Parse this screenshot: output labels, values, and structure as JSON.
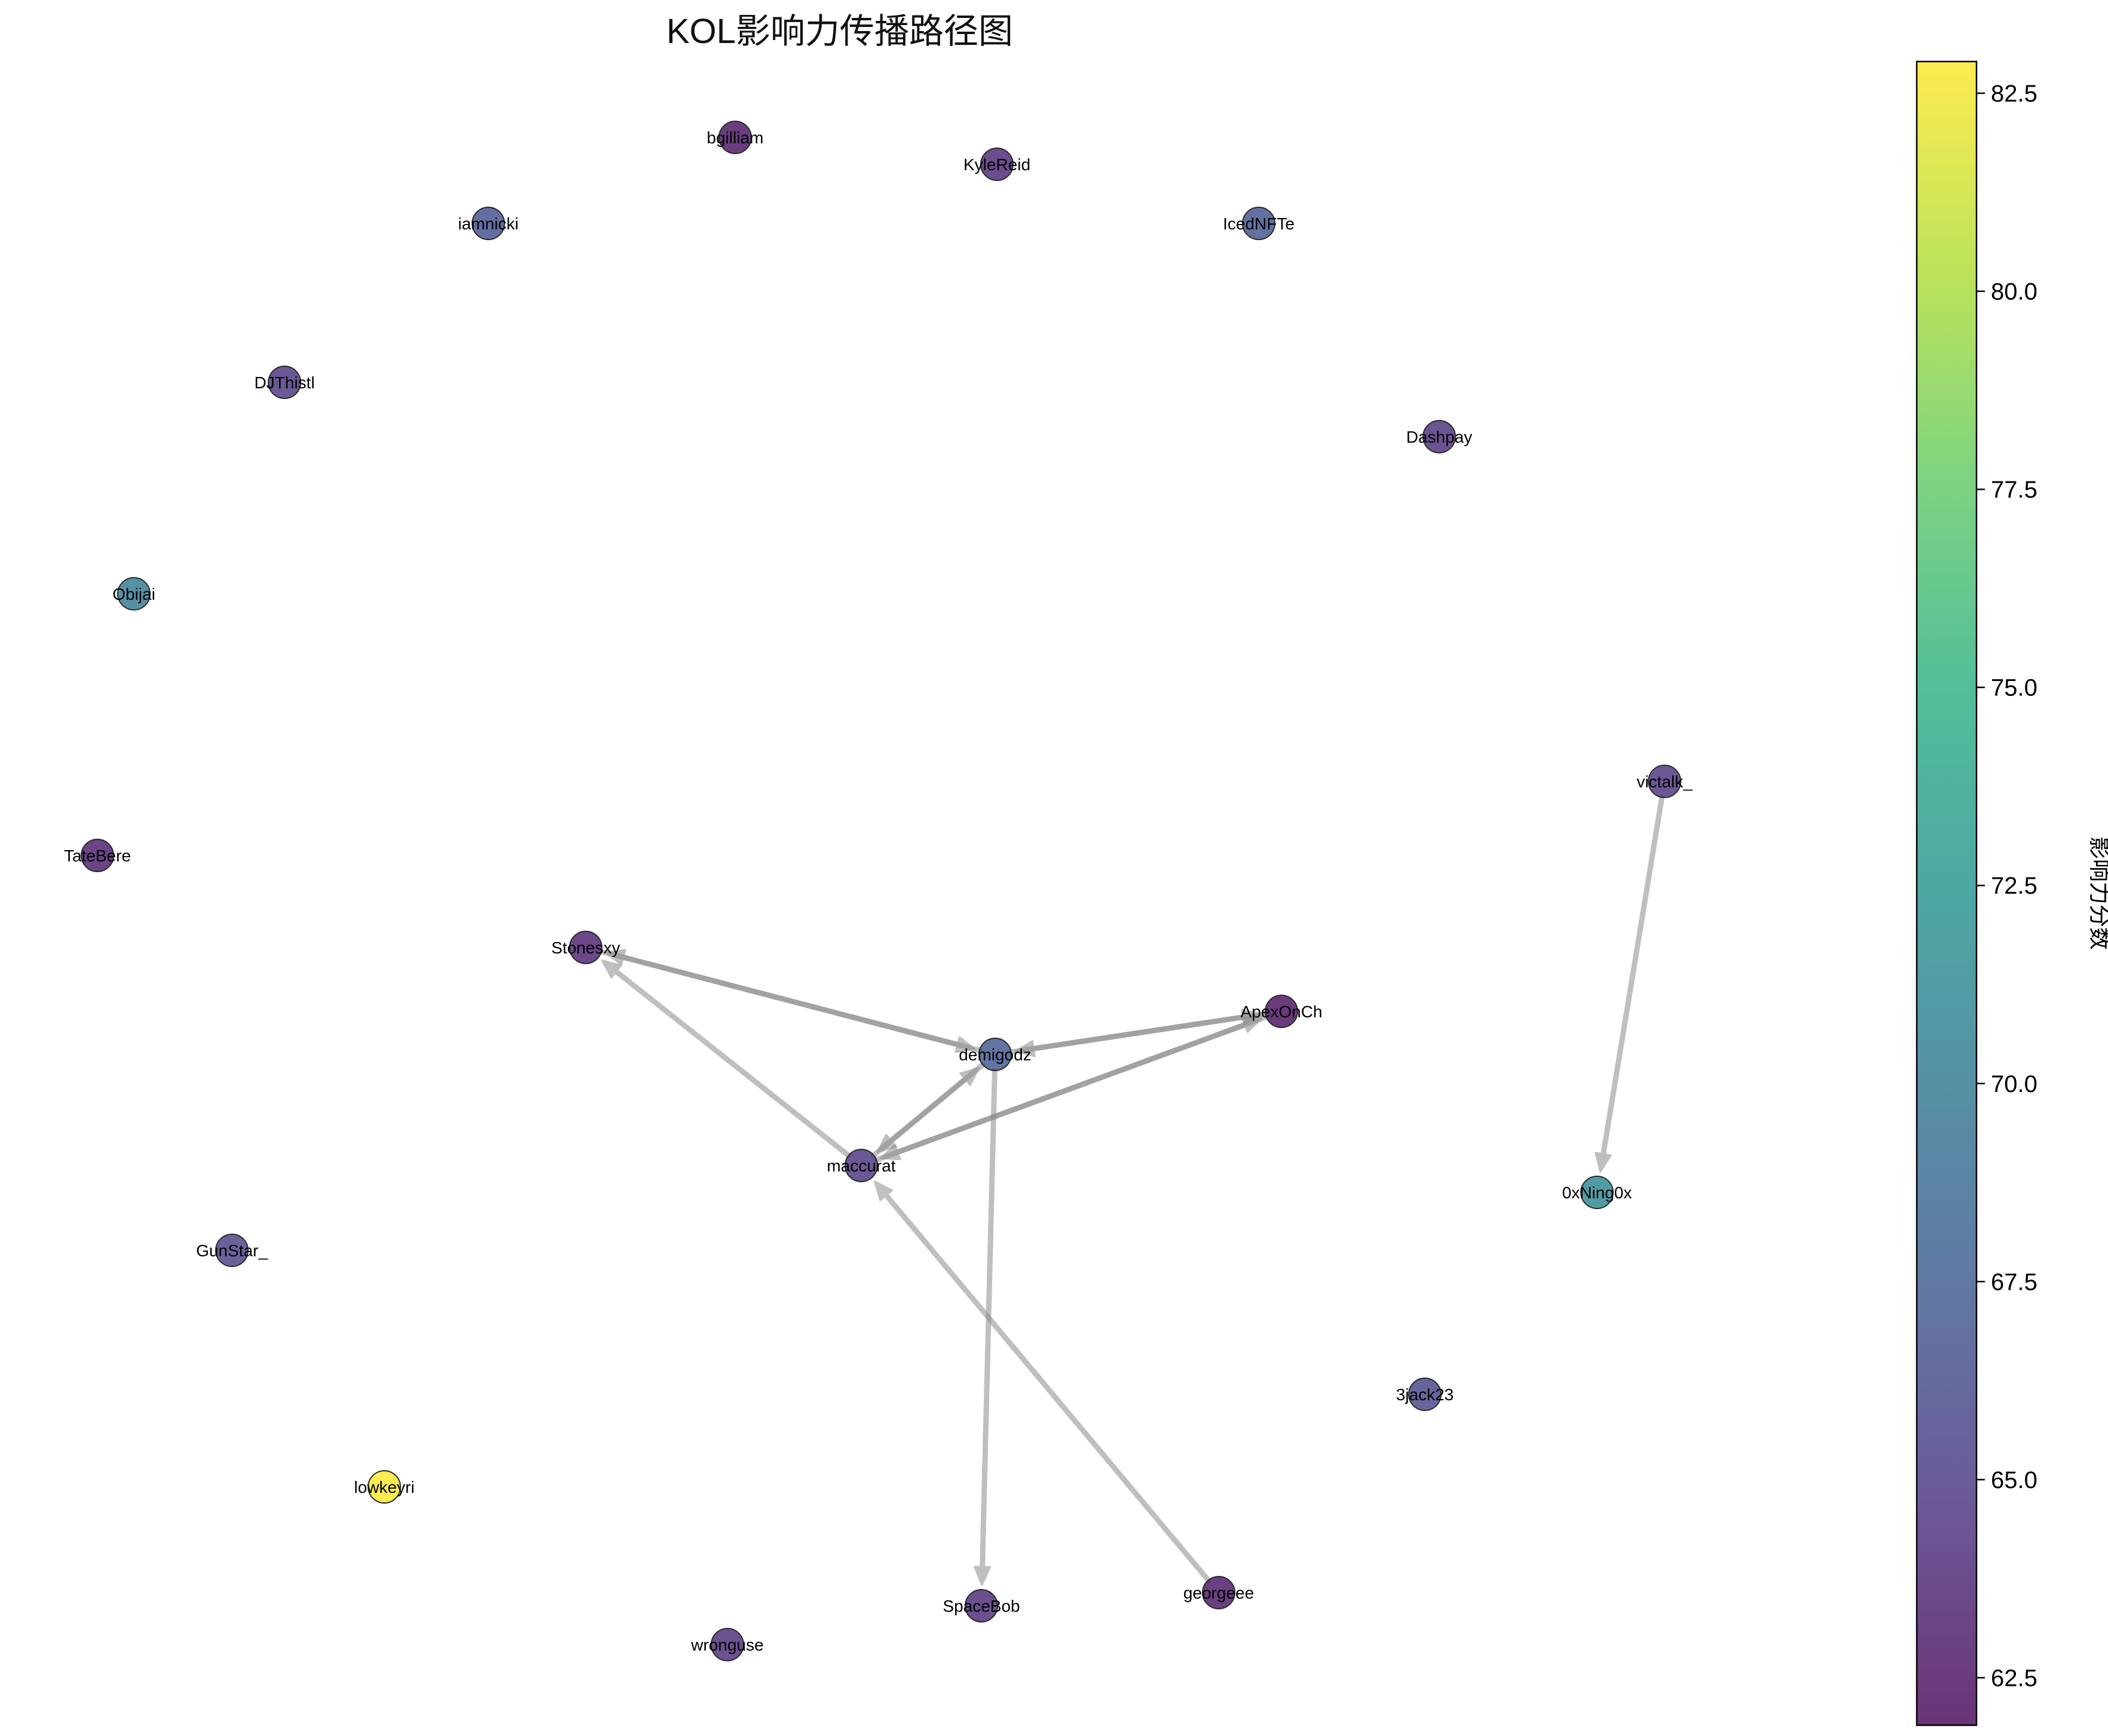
{
  "title": "KOL影响力传播路径图",
  "colorbar": {
    "label": "影响力分数",
    "min": 61.9,
    "max": 82.9,
    "ticks": [
      "62.5",
      "65.0",
      "67.5",
      "70.0",
      "72.5",
      "75.0",
      "77.5",
      "80.0",
      "82.5"
    ],
    "colormap": "viridis"
  },
  "nodes": [
    {
      "id": "bgilliam",
      "score": 62.6
    },
    {
      "id": "KyleReid",
      "score": 63.8
    },
    {
      "id": "iamnicki",
      "score": 66.6
    },
    {
      "id": "IcedNFTe",
      "score": 66.9
    },
    {
      "id": "DJThistl",
      "score": 64.7
    },
    {
      "id": "Dashpay",
      "score": 64.3
    },
    {
      "id": "Obijai",
      "score": 70.1
    },
    {
      "id": "victalk_",
      "score": 64.5
    },
    {
      "id": "TateBere",
      "score": 63.1
    },
    {
      "id": "Stonesxy",
      "score": 63.4
    },
    {
      "id": "ApexOnCh",
      "score": 62.4
    },
    {
      "id": "demigodz",
      "score": 67.1
    },
    {
      "id": "maccurat",
      "score": 64.6
    },
    {
      "id": "0xNing0x",
      "score": 71.2
    },
    {
      "id": "GunStar_",
      "score": 65.6
    },
    {
      "id": "3jack23",
      "score": 65.9
    },
    {
      "id": "lowkeyri",
      "score": 82.9
    },
    {
      "id": "SpaceBob",
      "score": 63.9
    },
    {
      "id": "georgeee",
      "score": 62.8
    },
    {
      "id": "wronguse",
      "score": 64.1
    }
  ],
  "edges": [
    {
      "from": "demigodz",
      "to": "Stonesxy"
    },
    {
      "from": "Stonesxy",
      "to": "demigodz"
    },
    {
      "from": "demigodz",
      "to": "ApexOnCh"
    },
    {
      "from": "ApexOnCh",
      "to": "demigodz"
    },
    {
      "from": "demigodz",
      "to": "maccurat"
    },
    {
      "from": "maccurat",
      "to": "demigodz"
    },
    {
      "from": "maccurat",
      "to": "ApexOnCh"
    },
    {
      "from": "ApexOnCh",
      "to": "maccurat"
    },
    {
      "from": "maccurat",
      "to": "Stonesxy"
    },
    {
      "from": "demigodz",
      "to": "SpaceBob"
    },
    {
      "from": "georgeee",
      "to": "maccurat"
    },
    {
      "from": "victalk_",
      "to": "0xNing0x"
    }
  ]
}
